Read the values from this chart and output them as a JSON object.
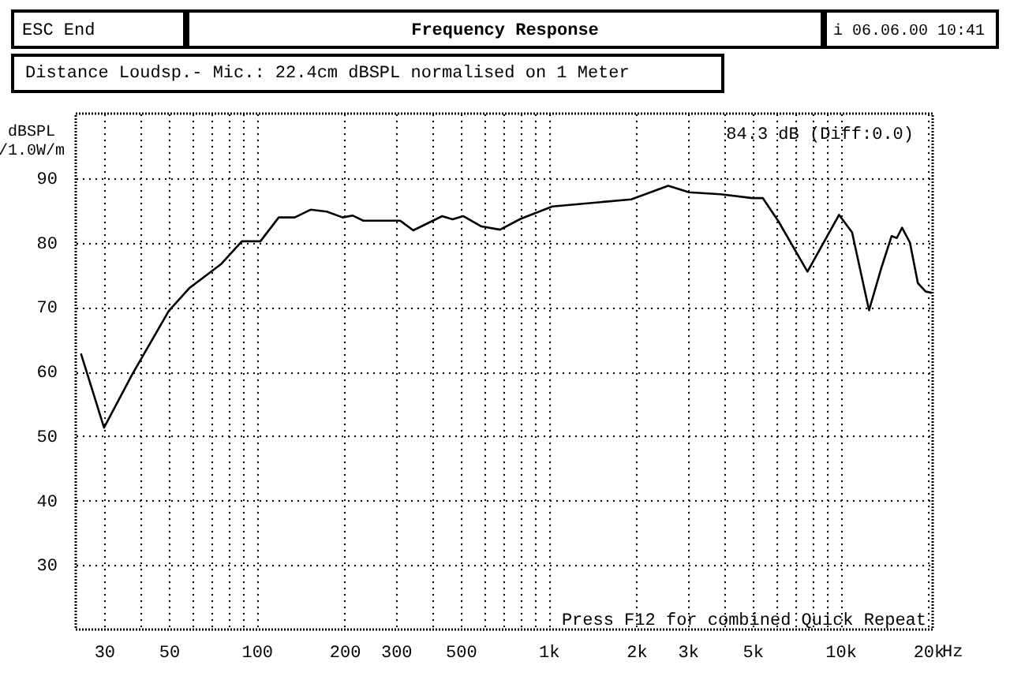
{
  "chart_data": {
    "type": "line",
    "title": "Frequency Response",
    "subtitle": "Distance Loudsp.- Mic.: 22.4cm dBSPL normalised on 1 Meter",
    "ylabel": "dBSPL\n/1.0W/m",
    "annotations": [
      "ESC End",
      "i 06.06.00 10:41",
      "84.3 dB (Diff:0.0)",
      "Press F12 for combined Quick Repeat"
    ],
    "x": [
      25,
      30,
      37.4,
      50,
      59,
      75.7,
      89,
      103,
      119,
      135,
      153,
      174,
      197,
      213,
      232,
      310,
      344,
      432,
      469,
      510,
      589,
      682,
      804,
      1030,
      1920,
      2570,
      3030,
      3890,
      4990,
      5420,
      6130,
      7710,
      9890,
      10960,
      12530,
      13770,
      14970,
      15600,
      16260,
      17300,
      18420,
      19600,
      20600
    ],
    "series": [
      {
        "color": "#000000",
        "values": [
          62.8,
          51.3,
          59.5,
          69.4,
          73.0,
          76.7,
          80.2,
          80.2,
          83.9,
          83.9,
          85.1,
          84.8,
          83.9,
          84.2,
          83.4,
          83.4,
          81.9,
          84.1,
          83.6,
          84.1,
          82.5,
          82.0,
          83.7,
          85.6,
          86.7,
          88.8,
          87.8,
          87.5,
          86.9,
          86.9,
          83.3,
          75.5,
          84.3,
          81.6,
          69.5,
          75.9,
          81.0,
          80.7,
          82.3,
          80.0,
          73.7,
          72.4,
          72.2
        ]
      }
    ],
    "xlim": [
      24,
      20700
    ],
    "ylim": [
      20,
      100
    ],
    "xticks": [
      30,
      {
        "value": 40,
        "label": null
      },
      50,
      {
        "value": 60,
        "label": null
      },
      {
        "value": 70,
        "label": null
      },
      {
        "value": 80,
        "label": null
      },
      {
        "value": 90,
        "label": null
      },
      100,
      200,
      300,
      {
        "value": 400,
        "label": null
      },
      500,
      {
        "value": 600,
        "label": null
      },
      {
        "value": 700,
        "label": null
      },
      {
        "value": 800,
        "label": null
      },
      {
        "value": 900,
        "label": null
      },
      {
        "value": 1000,
        "label": "1k"
      },
      {
        "value": 2000,
        "label": "2k"
      },
      {
        "value": 3000,
        "label": "3k"
      },
      {
        "value": 4000,
        "label": null
      },
      {
        "value": 5000,
        "label": "5k"
      },
      {
        "value": 6000,
        "label": null
      },
      {
        "value": 7000,
        "label": null
      },
      {
        "value": 8000,
        "label": null
      },
      {
        "value": 9000,
        "label": null
      },
      {
        "value": 10000,
        "label": "10k"
      },
      {
        "value": 20000,
        "label": "20k"
      }
    ],
    "xlabel": "Hz",
    "yticks": [
      30,
      40,
      50,
      60,
      70,
      80,
      90
    ],
    "log": "x",
    "grid": true,
    "marker": "none",
    "line_style": "solid"
  }
}
